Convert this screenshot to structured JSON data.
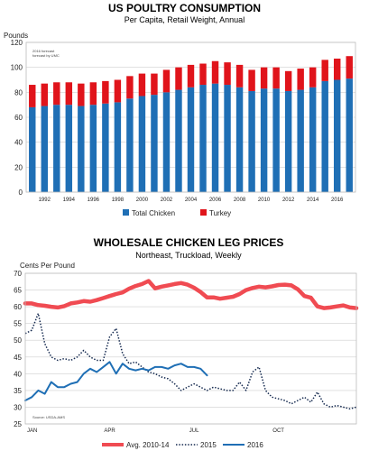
{
  "chart_data": [
    {
      "type": "bar",
      "stacked": true,
      "title": "US POULTRY CONSUMPTION",
      "subtitle": "Per Capita, Retail Weight, Annual",
      "ylabel": "Pounds",
      "ylim": [
        0,
        120
      ],
      "yticks": [
        0,
        20,
        40,
        60,
        80,
        100,
        120
      ],
      "note_lines": [
        "2016 forecast",
        "forecast by UMC"
      ],
      "x": [
        1991,
        1992,
        1993,
        1994,
        1995,
        1996,
        1997,
        1998,
        1999,
        2000,
        2001,
        2002,
        2003,
        2004,
        2005,
        2006,
        2007,
        2008,
        2009,
        2010,
        2011,
        2012,
        2013,
        2014,
        2015,
        2016,
        2017
      ],
      "xtick_labels": [
        "1992",
        "1994",
        "1996",
        "1998",
        "2000",
        "2002",
        "2004",
        "2006",
        "2008",
        "2010",
        "2012",
        "2014",
        "2016"
      ],
      "series": [
        {
          "name": "Total Chicken",
          "color": "#1f6fb5",
          "values": [
            68,
            69,
            70,
            70,
            69,
            70,
            71,
            72,
            75,
            77,
            78,
            80,
            82,
            84,
            86,
            87,
            86,
            84,
            81,
            83,
            83,
            81,
            82,
            84,
            89,
            90,
            91
          ]
        },
        {
          "name": "Turkey",
          "color": "#e0141b",
          "values": [
            18,
            18,
            18,
            18,
            18,
            18,
            18,
            18,
            18,
            18,
            17,
            18,
            18,
            18,
            17,
            18,
            18,
            18,
            17,
            17,
            17,
            16,
            17,
            16,
            17,
            17,
            18
          ]
        }
      ],
      "grid": true,
      "legend": "bottom"
    },
    {
      "type": "line",
      "title": "WHOLESALE CHICKEN LEG PRICES",
      "subtitle": "Northeast, Truckload, Weekly",
      "ylabel": "Cents Per Pound",
      "ylim": [
        25,
        70
      ],
      "yticks": [
        25,
        30,
        35,
        40,
        45,
        50,
        55,
        60,
        65,
        70
      ],
      "xtick_labels": [
        "JAN",
        "APR",
        "JUL",
        "OCT"
      ],
      "xtick_weeks": [
        0,
        13,
        26,
        39
      ],
      "week_count": 52,
      "source": "Source: USDA-AMS",
      "series": [
        {
          "name": "Avg. 2010-14",
          "color": "#f04b52",
          "style": "thick",
          "values": [
            61,
            61,
            60.5,
            60.3,
            60,
            59.8,
            60.2,
            61,
            61.3,
            61.7,
            61.5,
            62,
            62.6,
            63.2,
            63.8,
            64.3,
            65.4,
            66.2,
            66.8,
            67.7,
            65.5,
            66,
            66.4,
            66.8,
            67.1,
            66.6,
            65.7,
            64.4,
            62.8,
            62.8,
            62.4,
            62.7,
            63,
            63.8,
            65,
            65.6,
            66,
            65.8,
            66.1,
            66.5,
            66.6,
            66.4,
            65.2,
            63.2,
            62.7,
            60.1,
            59.6,
            59.8,
            60.1,
            60.4,
            59.8,
            59.6
          ]
        },
        {
          "name": "2015",
          "color": "#14294f",
          "style": "dotted",
          "values": [
            52,
            53,
            58,
            49,
            45,
            44,
            44.5,
            44,
            45,
            47,
            45,
            44,
            44,
            51,
            53.5,
            46,
            43,
            43.5,
            42,
            40.5,
            40,
            39,
            38.5,
            37,
            35,
            36,
            37,
            36,
            35,
            36,
            35.5,
            35,
            35,
            37.5,
            35,
            40.5,
            42,
            35,
            33,
            32.5,
            32,
            31,
            32,
            33,
            31.5,
            34.5,
            31,
            30,
            30.5,
            30,
            29.5,
            30
          ]
        },
        {
          "name": "2016",
          "color": "#1f6fb5",
          "style": "solid",
          "values": [
            32,
            33,
            35,
            34,
            37.5,
            36,
            36,
            37,
            37.5,
            40,
            41.5,
            40.5,
            42,
            43.5,
            40,
            43,
            41.5,
            41,
            41.5,
            41,
            42,
            42,
            41.5,
            42.5,
            43,
            42,
            42,
            41.5,
            39.5
          ]
        }
      ],
      "grid": true,
      "legend": "bottom"
    }
  ]
}
